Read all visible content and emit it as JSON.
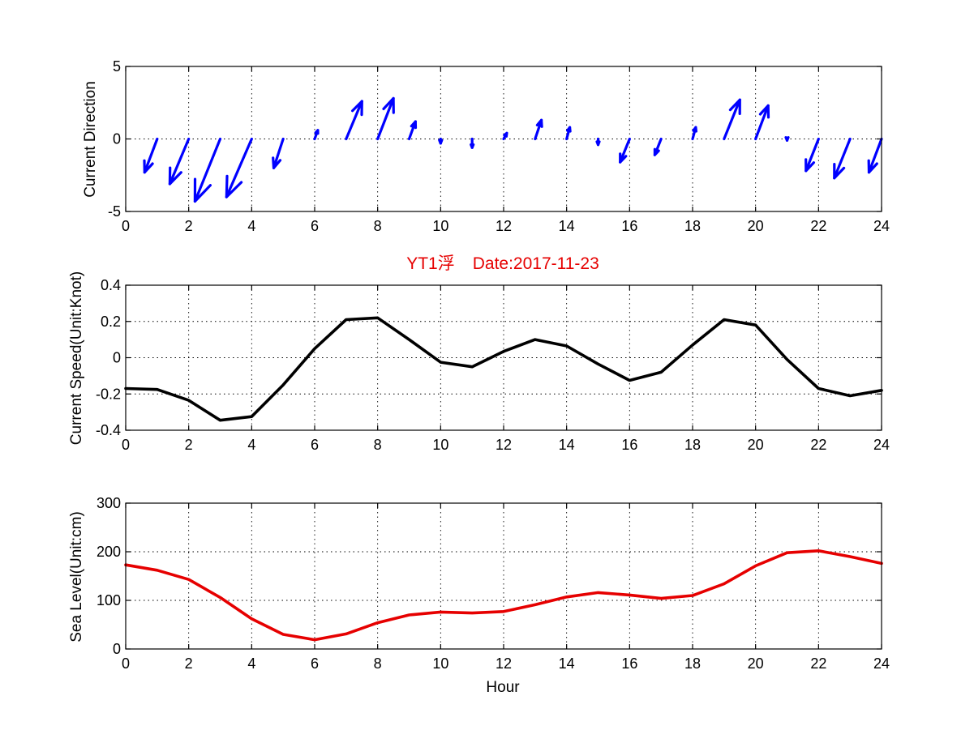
{
  "chart_data": [
    {
      "type": "quiver",
      "ylabel": "Current Direction",
      "xlim": [
        0,
        24
      ],
      "ylim": [
        -5,
        5
      ],
      "x_ticks": [
        "0",
        "2",
        "4",
        "6",
        "8",
        "10",
        "12",
        "14",
        "16",
        "18",
        "20",
        "22",
        "24"
      ],
      "y_ticks": [
        "-5",
        "0",
        "5"
      ],
      "grid": true,
      "color": "#0000ff",
      "vectors": [
        {
          "x": 1,
          "u": -0.4,
          "v": -2.3
        },
        {
          "x": 2,
          "u": -0.6,
          "v": -3.1
        },
        {
          "x": 3,
          "u": -0.8,
          "v": -4.3
        },
        {
          "x": 4,
          "u": -0.8,
          "v": -4.0
        },
        {
          "x": 5,
          "u": -0.3,
          "v": -2.0
        },
        {
          "x": 6,
          "u": 0.1,
          "v": 0.6
        },
        {
          "x": 7,
          "u": 0.5,
          "v": 2.6
        },
        {
          "x": 8,
          "u": 0.5,
          "v": 2.8
        },
        {
          "x": 9,
          "u": 0.2,
          "v": 1.2
        },
        {
          "x": 10,
          "u": 0.0,
          "v": -0.3
        },
        {
          "x": 11,
          "u": 0.0,
          "v": -0.6
        },
        {
          "x": 12,
          "u": 0.1,
          "v": 0.4
        },
        {
          "x": 13,
          "u": 0.2,
          "v": 1.3
        },
        {
          "x": 14,
          "u": 0.1,
          "v": 0.8
        },
        {
          "x": 15,
          "u": 0.0,
          "v": -0.4
        },
        {
          "x": 16,
          "u": -0.3,
          "v": -1.6
        },
        {
          "x": 17,
          "u": -0.2,
          "v": -1.1
        },
        {
          "x": 18,
          "u": 0.1,
          "v": 0.8
        },
        {
          "x": 19,
          "u": 0.5,
          "v": 2.7
        },
        {
          "x": 20,
          "u": 0.4,
          "v": 2.3
        },
        {
          "x": 21,
          "u": 0.0,
          "v": -0.1
        },
        {
          "x": 22,
          "u": -0.4,
          "v": -2.2
        },
        {
          "x": 23,
          "u": -0.5,
          "v": -2.7
        },
        {
          "x": 24,
          "u": -0.4,
          "v": -2.3
        }
      ]
    },
    {
      "type": "line",
      "title_main": "YT1浮",
      "title_date": "Date:2017-11-23",
      "title_color": "#e60000",
      "ylabel": "Current Speed(Unit:Knot)",
      "xlim": [
        0,
        24
      ],
      "ylim": [
        -0.4,
        0.4
      ],
      "x_ticks": [
        "0",
        "2",
        "4",
        "6",
        "8",
        "10",
        "12",
        "14",
        "16",
        "18",
        "20",
        "22",
        "24"
      ],
      "y_ticks": [
        "-0.4",
        "-0.2",
        "0",
        "0.2",
        "0.4"
      ],
      "grid": true,
      "color": "#000000",
      "x": [
        0,
        1,
        2,
        3,
        4,
        5,
        6,
        7,
        8,
        9,
        10,
        11,
        12,
        13,
        14,
        15,
        16,
        17,
        18,
        19,
        20,
        21,
        22,
        23,
        24
      ],
      "y": [
        -0.17,
        -0.175,
        -0.235,
        -0.345,
        -0.325,
        -0.15,
        0.05,
        0.21,
        0.22,
        0.1,
        -0.025,
        -0.05,
        0.035,
        0.1,
        0.065,
        -0.035,
        -0.125,
        -0.08,
        0.07,
        0.21,
        0.18,
        -0.01,
        -0.17,
        -0.21,
        -0.18
      ]
    },
    {
      "type": "line",
      "ylabel": "Sea Level(Unit:cm)",
      "xlabel": "Hour",
      "xlim": [
        0,
        24
      ],
      "ylim": [
        0,
        300
      ],
      "x_ticks": [
        "0",
        "2",
        "4",
        "6",
        "8",
        "10",
        "12",
        "14",
        "16",
        "18",
        "20",
        "22",
        "24"
      ],
      "y_ticks": [
        "0",
        "100",
        "200",
        "300"
      ],
      "grid": true,
      "color": "#e60000",
      "x": [
        0,
        1,
        2,
        3,
        4,
        5,
        6,
        7,
        8,
        9,
        10,
        11,
        12,
        13,
        14,
        15,
        16,
        17,
        18,
        19,
        20,
        21,
        22,
        23,
        24
      ],
      "y": [
        173,
        162,
        143,
        106,
        62,
        30,
        19,
        31,
        54,
        70,
        76,
        74,
        77,
        91,
        107,
        116,
        111,
        104,
        110,
        134,
        171,
        198,
        202,
        190,
        176
      ]
    }
  ]
}
